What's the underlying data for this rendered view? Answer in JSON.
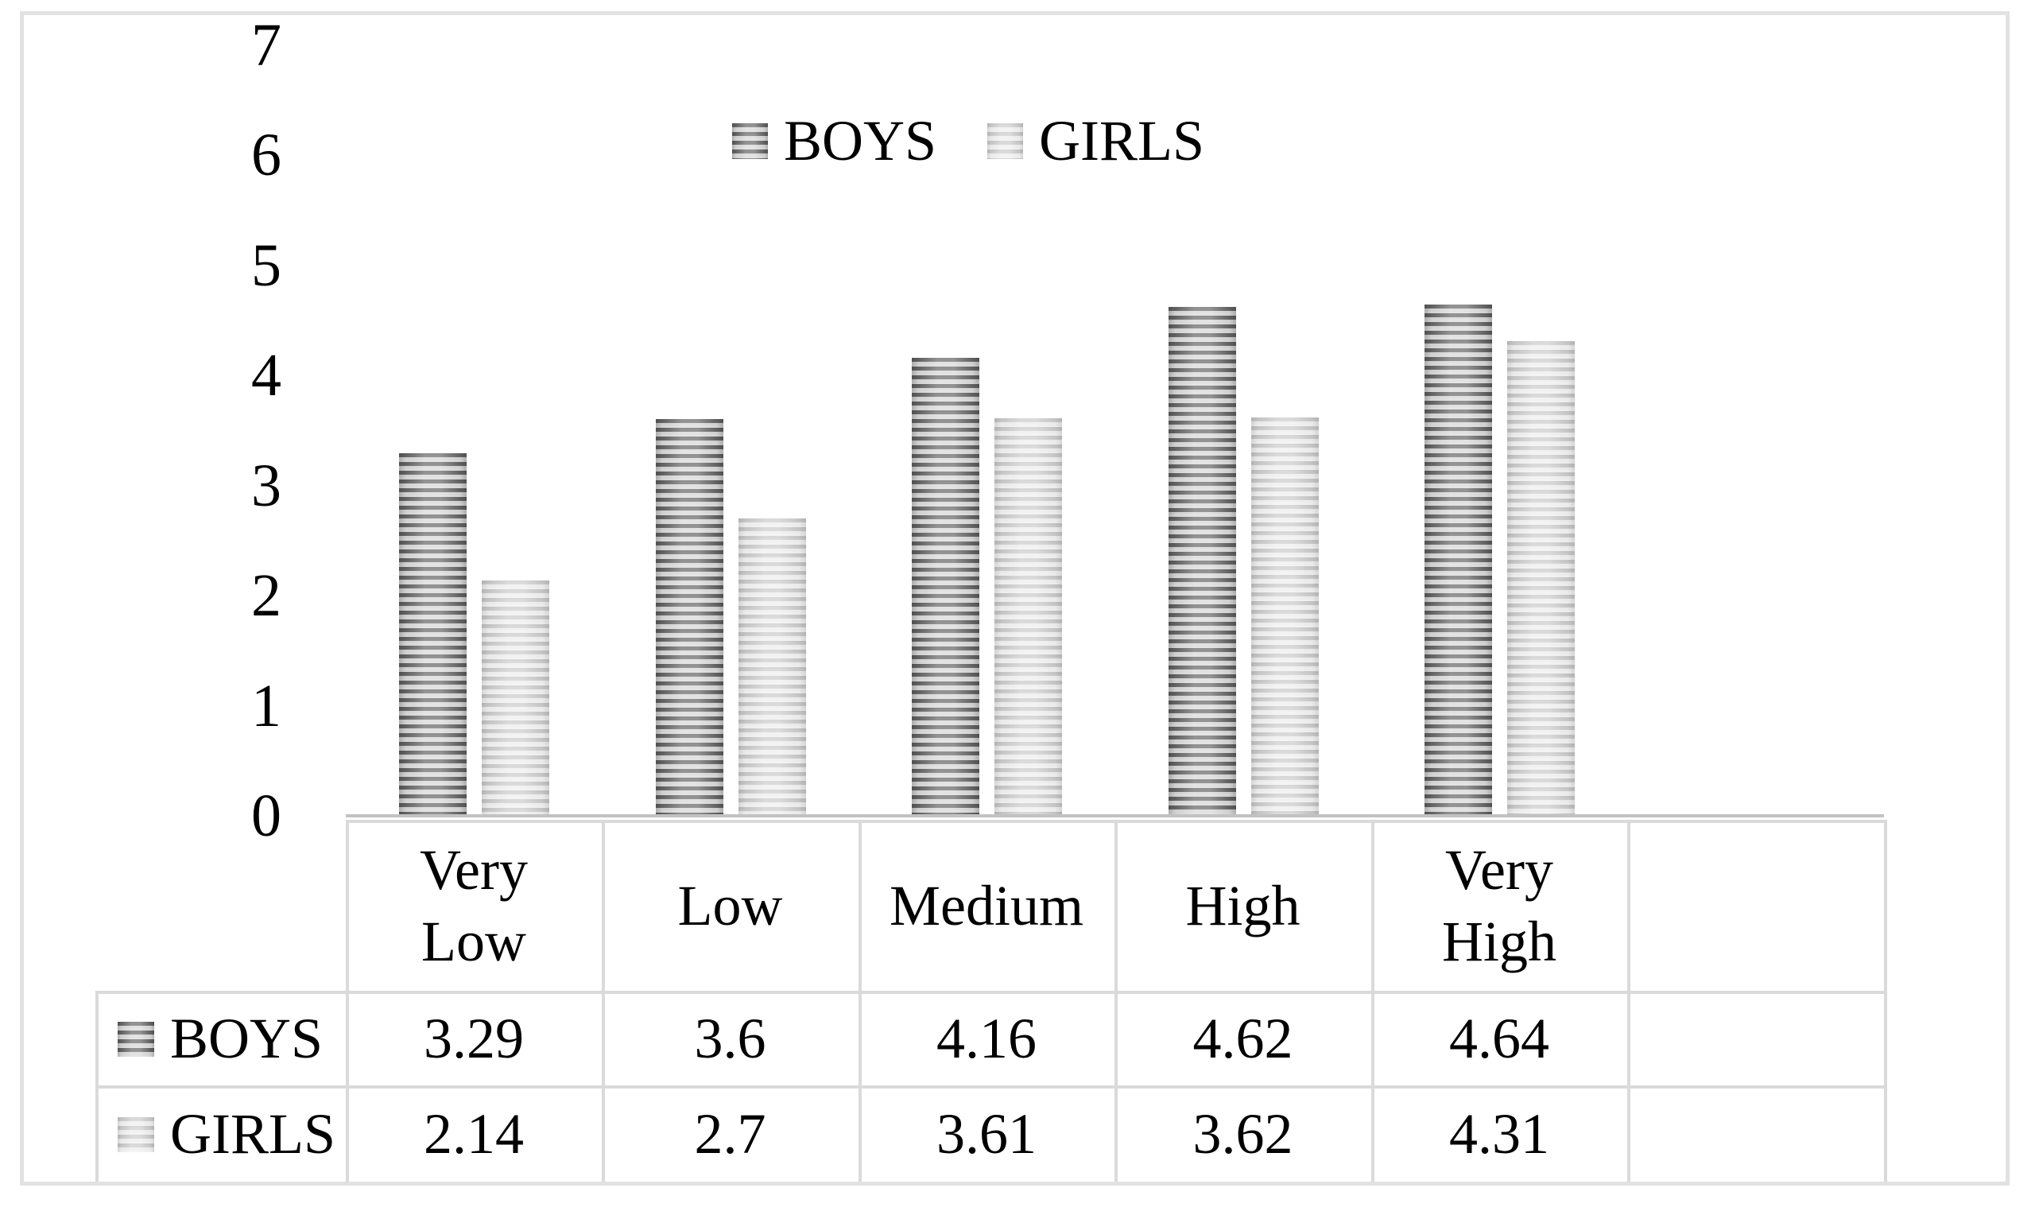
{
  "chart_data": {
    "type": "bar",
    "title": "",
    "categories": [
      "Very Low",
      "Low",
      "Medium",
      "High",
      "Very High"
    ],
    "series": [
      {
        "name": "BOYS",
        "values": [
          3.29,
          3.6,
          4.16,
          4.62,
          4.64
        ]
      },
      {
        "name": "GIRLS",
        "values": [
          2.14,
          2.7,
          3.61,
          3.62,
          4.31
        ]
      }
    ],
    "xlabel": "",
    "ylabel": "",
    "ylim": [
      0,
      7
    ],
    "yticks": [
      0,
      1,
      2,
      3,
      4,
      5,
      6,
      7
    ],
    "grid": false,
    "legend_position": "top-center",
    "bar_fill_pattern": "horizontal-stripes",
    "colors": {
      "boys_stripe_dark": "#646464",
      "boys_stripe_light": "#d5d5d5",
      "girls_stripe_dark": "#c5c5c5",
      "girls_stripe_light": "#ebebeb",
      "axis_line": "#c2c2c2",
      "table_border": "#dadada",
      "figure_border": "#e2e2e2",
      "text": "#000000"
    },
    "data_table_shown": true
  },
  "y_axis": {
    "labels": [
      "7",
      "6",
      "5",
      "4",
      "3",
      "2",
      "1",
      "0"
    ]
  },
  "legend": {
    "items": [
      {
        "label": "BOYS",
        "series": "boys"
      },
      {
        "label": "GIRLS",
        "series": "girls"
      }
    ]
  },
  "table": {
    "headers": [
      "Very Low",
      "Low",
      "Medium",
      "High",
      "Very High",
      ""
    ],
    "rows": [
      {
        "label": "BOYS",
        "series": "boys",
        "values": [
          "3.29",
          "3.6",
          "4.16",
          "4.62",
          "4.64",
          ""
        ]
      },
      {
        "label": "GIRLS",
        "series": "girls",
        "values": [
          "2.14",
          "2.7",
          "3.61",
          "3.62",
          "4.31",
          ""
        ]
      }
    ]
  }
}
